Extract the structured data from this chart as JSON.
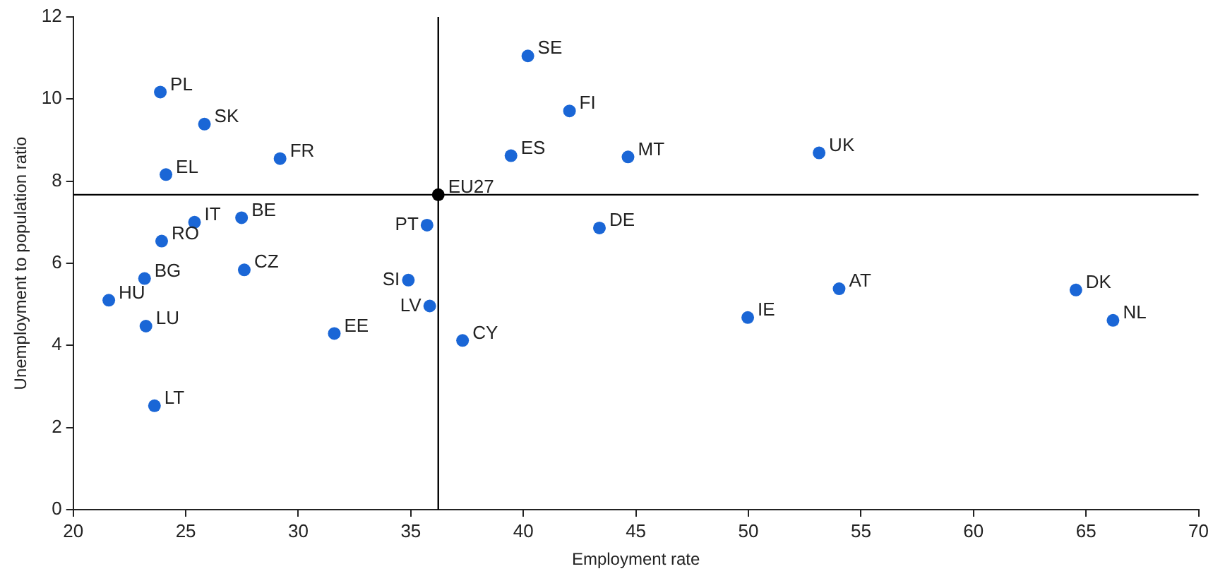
{
  "chart_data": {
    "type": "scatter",
    "xlabel": "Employment rate",
    "ylabel": "Unemployment to population ratio",
    "xlim": [
      20,
      70
    ],
    "xticks": [
      20,
      25,
      30,
      35,
      40,
      45,
      50,
      55,
      60,
      65,
      70
    ],
    "ylim": [
      0,
      12
    ],
    "yticks": [
      0,
      2,
      4,
      6,
      8,
      10,
      12
    ],
    "grid": false,
    "legend": false,
    "marker": "circle",
    "series": [
      {
        "color": "#1a66d6",
        "x": [
          23.87,
          25.83,
          24.12,
          29.19,
          25.39,
          27.48,
          23.93,
          23.17,
          27.6,
          21.58,
          23.23,
          23.61,
          31.6,
          35.72,
          34.89,
          35.84,
          37.3,
          40.2,
          42.05,
          39.45,
          44.65,
          53.14,
          43.38,
          49.97,
          54.03,
          64.55,
          66.2
        ],
        "values": [
          10.17,
          9.39,
          8.16,
          8.55,
          7.0,
          7.11,
          6.54,
          5.63,
          5.84,
          5.1,
          4.47,
          2.53,
          4.29,
          6.93,
          5.59,
          4.96,
          4.12,
          11.05,
          9.71,
          8.62,
          8.59,
          8.69,
          6.86,
          4.68,
          5.38,
          5.35,
          4.61
        ]
      },
      {
        "color": "#000000",
        "x": [
          36.22
        ],
        "values": [
          7.67
        ]
      }
    ],
    "ref_lines": [
      {
        "axis": "x",
        "value": 36.22,
        "color": "#000000"
      },
      {
        "axis": "y",
        "value": 7.67,
        "color": "#000000"
      }
    ],
    "annotations": [
      {
        "text": "PL",
        "x": 23.87,
        "y": 10.17
      },
      {
        "text": "SK",
        "x": 25.83,
        "y": 9.39
      },
      {
        "text": "EL",
        "x": 24.12,
        "y": 8.16
      },
      {
        "text": "FR",
        "x": 29.19,
        "y": 8.55
      },
      {
        "text": "IT",
        "x": 25.39,
        "y": 7.0
      },
      {
        "text": "BE",
        "x": 27.48,
        "y": 7.11
      },
      {
        "text": "RO",
        "x": 23.93,
        "y": 6.54
      },
      {
        "text": "BG",
        "x": 23.17,
        "y": 5.63
      },
      {
        "text": "CZ",
        "x": 27.6,
        "y": 5.84
      },
      {
        "text": "HU",
        "x": 21.58,
        "y": 5.1
      },
      {
        "text": "LU",
        "x": 23.23,
        "y": 4.47
      },
      {
        "text": "LT",
        "x": 23.61,
        "y": 2.53
      },
      {
        "text": "EE",
        "x": 31.6,
        "y": 4.29
      },
      {
        "text": "PT",
        "x": 35.72,
        "y": 6.93
      },
      {
        "text": "SI",
        "x": 34.89,
        "y": 5.59
      },
      {
        "text": "LV",
        "x": 35.84,
        "y": 4.96
      },
      {
        "text": "CY",
        "x": 37.3,
        "y": 4.12
      },
      {
        "text": "SE",
        "x": 40.2,
        "y": 11.05
      },
      {
        "text": "FI",
        "x": 42.05,
        "y": 9.71
      },
      {
        "text": "ES",
        "x": 39.45,
        "y": 8.62
      },
      {
        "text": "MT",
        "x": 44.65,
        "y": 8.59
      },
      {
        "text": "UK",
        "x": 53.14,
        "y": 8.69
      },
      {
        "text": "DE",
        "x": 43.38,
        "y": 6.86
      },
      {
        "text": "IE",
        "x": 49.97,
        "y": 4.68
      },
      {
        "text": "AT",
        "x": 54.03,
        "y": 5.38
      },
      {
        "text": "DK",
        "x": 64.55,
        "y": 5.35
      },
      {
        "text": "NL",
        "x": 66.2,
        "y": 4.61
      },
      {
        "text": "EU27",
        "x": 36.22,
        "y": 7.67
      }
    ]
  }
}
